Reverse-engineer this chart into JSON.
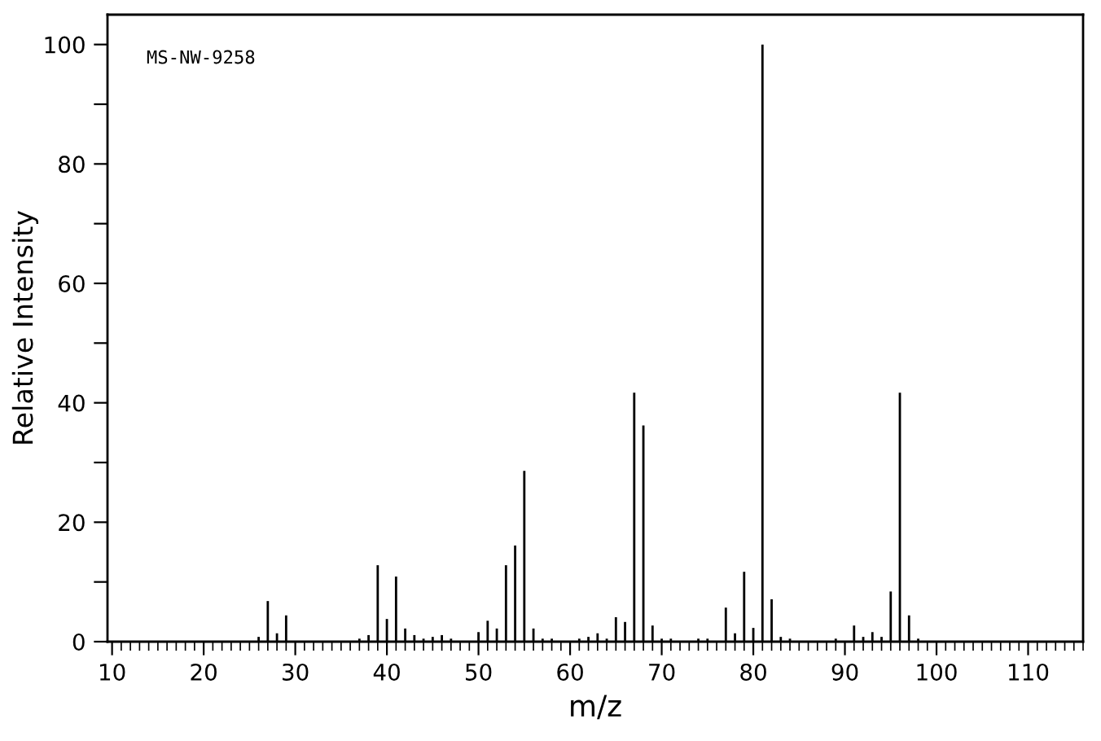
{
  "chart_data": {
    "type": "bar",
    "xlabel": "m/z",
    "ylabel": "Relative Intensity",
    "annotations": [
      "MS-NW-9258"
    ],
    "color": "#000000",
    "x": [
      26,
      27,
      28,
      29,
      30,
      37,
      38,
      39,
      40,
      41,
      42,
      43,
      44,
      45,
      46,
      47,
      50,
      51,
      52,
      53,
      54,
      55,
      56,
      57,
      58,
      61,
      62,
      63,
      64,
      65,
      66,
      67,
      68,
      69,
      70,
      71,
      74,
      75,
      77,
      78,
      79,
      80,
      81,
      82,
      83,
      84,
      89,
      91,
      92,
      93,
      94,
      95,
      96,
      97,
      98
    ],
    "values": [
      0.8,
      6.8,
      1.4,
      4.4,
      null,
      0.5,
      1.1,
      12.8,
      3.8,
      10.9,
      2.2,
      1.1,
      0.5,
      0.8,
      1.1,
      0.5,
      1.6,
      3.5,
      2.2,
      12.8,
      16.1,
      28.6,
      2.2,
      0.5,
      0.5,
      0.5,
      0.8,
      1.4,
      0.5,
      4.1,
      3.3,
      41.7,
      36.2,
      2.7,
      0.5,
      0.5,
      0.5,
      0.5,
      5.7,
      1.4,
      11.7,
      2.3,
      100,
      7.1,
      0.8,
      0.5,
      0.5,
      2.7,
      0.8,
      1.6,
      0.8,
      8.4,
      41.7,
      4.4,
      0.5
    ],
    "xlim": [
      9.5,
      116
    ],
    "xticks": [
      10,
      20,
      30,
      40,
      50,
      60,
      70,
      80,
      90,
      100,
      110
    ],
    "ylim": [
      0,
      105
    ],
    "yticks": [
      0,
      {
        "value": 10,
        "label": null
      },
      20,
      {
        "value": 30,
        "label": null
      },
      40,
      {
        "value": 50,
        "label": null
      },
      60,
      {
        "value": 70,
        "label": null
      },
      80,
      {
        "value": 90,
        "label": null
      },
      100
    ],
    "grid": false
  }
}
